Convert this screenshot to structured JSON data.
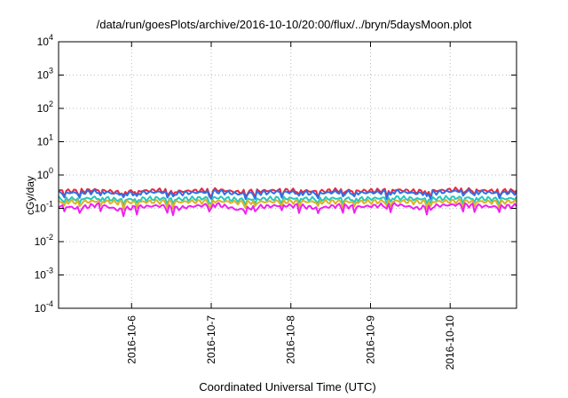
{
  "chart_data": {
    "type": "line",
    "title": "/data/run/goesPlots/archive/2016-10-10/20:00/flux/../bryn/5daysMoon.plot",
    "xlabel": "Coordinated Universal Time (UTC)",
    "ylabel": "cGy/day",
    "yscale": "log",
    "ylim": [
      0.0001,
      10000
    ],
    "xlim": [
      "2016-10-05T02:00",
      "2016-10-10T20:00"
    ],
    "grid": true,
    "x_ticks": [
      "2016-10-6",
      "2016-10-7",
      "2016-10-8",
      "2016-10-9",
      "2016-10-10"
    ],
    "y_ticks": [
      {
        "base": "10",
        "exp": "4",
        "value": 10000
      },
      {
        "base": "10",
        "exp": "3",
        "value": 1000
      },
      {
        "base": "10",
        "exp": "2",
        "value": 100
      },
      {
        "base": "10",
        "exp": "1",
        "value": 10
      },
      {
        "base": "10",
        "exp": "0",
        "value": 1
      },
      {
        "base": "10",
        "exp": "-1",
        "value": 0.1
      },
      {
        "base": "10",
        "exp": "-2",
        "value": 0.01
      },
      {
        "base": "10",
        "exp": "-3",
        "value": 0.001
      },
      {
        "base": "10",
        "exp": "-4",
        "value": 0.0001
      }
    ],
    "x_sampled": [
      "2016-10-05T02:00",
      "2016-10-05T08:00",
      "2016-10-05T14:00",
      "2016-10-05T20:00",
      "2016-10-06T02:00",
      "2016-10-06T08:00",
      "2016-10-06T14:00",
      "2016-10-06T20:00",
      "2016-10-07T02:00",
      "2016-10-07T08:00",
      "2016-10-07T14:00",
      "2016-10-07T20:00",
      "2016-10-08T02:00",
      "2016-10-08T08:00",
      "2016-10-08T14:00",
      "2016-10-08T20:00",
      "2016-10-09T02:00",
      "2016-10-09T08:00",
      "2016-10-09T14:00",
      "2016-10-09T20:00",
      "2016-10-10T02:00",
      "2016-10-10T08:00",
      "2016-10-10T14:00",
      "2016-10-10T20:00"
    ],
    "series": [
      {
        "color": "#e8283c",
        "values": [
          0.34,
          0.33,
          0.36,
          0.3,
          0.33,
          0.35,
          0.32,
          0.34,
          0.36,
          0.31,
          0.33,
          0.35,
          0.34,
          0.32,
          0.35,
          0.33,
          0.34,
          0.36,
          0.32,
          0.34,
          0.37,
          0.35,
          0.33,
          0.34
        ]
      },
      {
        "color": "#2f6fe8",
        "values": [
          0.3,
          0.29,
          0.32,
          0.27,
          0.29,
          0.31,
          0.28,
          0.3,
          0.32,
          0.27,
          0.29,
          0.31,
          0.3,
          0.28,
          0.31,
          0.29,
          0.3,
          0.32,
          0.28,
          0.3,
          0.33,
          0.31,
          0.29,
          0.3
        ]
      },
      {
        "color": "#24c8c0",
        "values": [
          0.2,
          0.19,
          0.21,
          0.18,
          0.19,
          0.2,
          0.19,
          0.2,
          0.21,
          0.18,
          0.19,
          0.2,
          0.2,
          0.19,
          0.2,
          0.19,
          0.2,
          0.21,
          0.19,
          0.2,
          0.21,
          0.2,
          0.19,
          0.2
        ]
      },
      {
        "color": "#d9b324",
        "values": [
          0.16,
          0.155,
          0.165,
          0.15,
          0.155,
          0.16,
          0.155,
          0.16,
          0.165,
          0.15,
          0.155,
          0.16,
          0.16,
          0.155,
          0.16,
          0.155,
          0.16,
          0.165,
          0.155,
          0.16,
          0.165,
          0.16,
          0.155,
          0.16
        ]
      },
      {
        "color": "#f21ff2",
        "values": [
          0.12,
          0.1,
          0.13,
          0.09,
          0.11,
          0.12,
          0.1,
          0.12,
          0.13,
          0.09,
          0.11,
          0.12,
          0.12,
          0.1,
          0.12,
          0.11,
          0.12,
          0.13,
          0.1,
          0.12,
          0.13,
          0.12,
          0.11,
          0.12
        ]
      }
    ]
  }
}
